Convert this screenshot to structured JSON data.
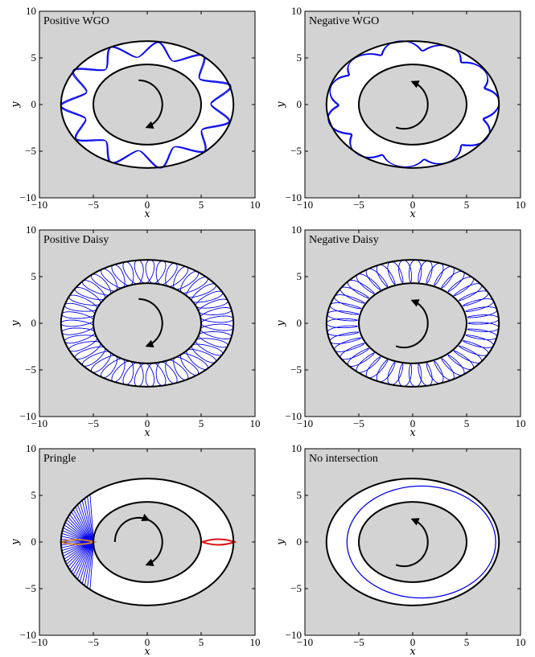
{
  "chart_data": [
    {
      "type": "line",
      "title": "Positive WGO",
      "xlabel": "x",
      "ylabel": "y",
      "xlim": [
        -10,
        10
      ],
      "ylim": [
        -10,
        10
      ],
      "xticks": [
        "−10",
        "−5",
        "0",
        "5",
        "10"
      ],
      "yticks": [
        "10",
        "5",
        "0",
        "−5",
        "−10"
      ],
      "background": "#d3d3d3",
      "outer_boundary": {
        "a": 8.0,
        "b": 6.8
      },
      "inner_boundary": {
        "a": 5.0,
        "b": 4.3
      },
      "trajectory": {
        "color": "#0000ee",
        "pattern": "wgo",
        "sign": 1
      },
      "rotation_arrow": "clockwise"
    },
    {
      "type": "line",
      "title": "Negative WGO",
      "xlabel": "x",
      "ylabel": "y",
      "xlim": [
        -10,
        10
      ],
      "ylim": [
        -10,
        10
      ],
      "xticks": [
        "−10",
        "−5",
        "0",
        "5",
        "10"
      ],
      "yticks": [
        "10",
        "5",
        "0",
        "−5",
        "−10"
      ],
      "background": "#d3d3d3",
      "outer_boundary": {
        "a": 8.0,
        "b": 6.8
      },
      "inner_boundary": {
        "a": 5.0,
        "b": 4.3
      },
      "trajectory": {
        "color": "#0000ee",
        "pattern": "wgo",
        "sign": -1
      },
      "rotation_arrow": "counterclockwise"
    },
    {
      "type": "line",
      "title": "Positive Daisy",
      "xlabel": "x",
      "ylabel": "y",
      "xlim": [
        -10,
        10
      ],
      "ylim": [
        -10,
        10
      ],
      "xticks": [
        "−10",
        "−5",
        "0",
        "5",
        "10"
      ],
      "yticks": [
        "10",
        "5",
        "0",
        "−5",
        "−10"
      ],
      "background": "#d3d3d3",
      "outer_boundary": {
        "a": 8.0,
        "b": 6.8
      },
      "inner_boundary": {
        "a": 5.0,
        "b": 4.3
      },
      "trajectory": {
        "color": "#0000ee",
        "pattern": "daisy",
        "sign": 1
      },
      "rotation_arrow": "clockwise"
    },
    {
      "type": "line",
      "title": "Negative Daisy",
      "xlabel": "x",
      "ylabel": "y",
      "xlim": [
        -10,
        10
      ],
      "ylim": [
        -10,
        10
      ],
      "xticks": [
        "−10",
        "−5",
        "0",
        "5",
        "10"
      ],
      "yticks": [
        "10",
        "5",
        "0",
        "−5",
        "−10"
      ],
      "background": "#d3d3d3",
      "outer_boundary": {
        "a": 8.0,
        "b": 6.8
      },
      "inner_boundary": {
        "a": 5.0,
        "b": 4.3
      },
      "trajectory": {
        "color": "#0000ee",
        "pattern": "daisy",
        "sign": -1
      },
      "rotation_arrow": "counterclockwise"
    },
    {
      "type": "line",
      "title": "Pringle",
      "xlabel": "x",
      "ylabel": "y",
      "xlim": [
        -10,
        10
      ],
      "ylim": [
        -10,
        10
      ],
      "xticks": [
        "−10",
        "−5",
        "0",
        "5",
        "10"
      ],
      "yticks": [
        "10",
        "5",
        "0",
        "−5",
        "−10"
      ],
      "background": "#d3d3d3",
      "outer_boundary": {
        "a": 8.0,
        "b": 6.8
      },
      "inner_boundary": {
        "a": 5.0,
        "b": 4.3
      },
      "trajectory": {
        "color": "#0000ee",
        "pattern": "pringle",
        "center_x": -6.5
      },
      "markers": [
        {
          "shape": "lens",
          "center_x": -6.5,
          "center_y": 0,
          "half_width": 1.6,
          "half_height": 0.25,
          "color": "#c87f3c"
        },
        {
          "shape": "lens",
          "center_x": 6.6,
          "center_y": 0,
          "half_width": 1.5,
          "half_height": 0.3,
          "color": "#e01010"
        }
      ],
      "rotation_arrow": "both"
    },
    {
      "type": "line",
      "title": "No intersection",
      "xlabel": "x",
      "ylabel": "y",
      "xlim": [
        -10,
        10
      ],
      "ylim": [
        -10,
        10
      ],
      "xticks": [
        "−10",
        "−5",
        "0",
        "5",
        "10"
      ],
      "yticks": [
        "10",
        "5",
        "0",
        "−5",
        "−10"
      ],
      "background": "#d3d3d3",
      "outer_boundary": {
        "a": 8.0,
        "b": 6.8
      },
      "inner_boundary": {
        "a": 5.0,
        "b": 4.3
      },
      "trajectory": {
        "color": "#0000ee",
        "pattern": "ellipse",
        "center_x": 0.8,
        "center_y": 0,
        "a": 6.9,
        "b": 6.0
      },
      "rotation_arrow": "counterclockwise"
    }
  ]
}
